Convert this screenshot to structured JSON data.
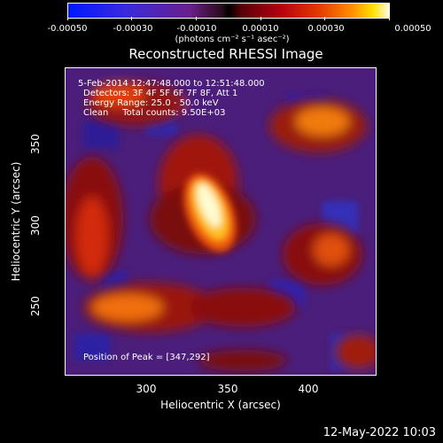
{
  "colorbar": {
    "ticks": [
      "-0.00050",
      "-0.00030",
      "-0.00010",
      "0.00010",
      "0.00030",
      "0.00050"
    ],
    "unit": "(photons cm⁻² s⁻¹ asec⁻²)"
  },
  "title": "Reconstructed RHESSI Image",
  "info": {
    "time": "5-Feb-2014 12:47:48.000 to 12:51:48.000",
    "detectors": "Detectors: 3F 4F 5F 6F 7F 8F, Att 1",
    "energy": "Energy Range: 25.0 - 50.0 keV",
    "clean": "Clean     Total counts: 9.50E+03",
    "peak": "Position of Peak = [347,292]"
  },
  "axes": {
    "xlabel": "Heliocentric X (arcsec)",
    "ylabel": "Heliocentric Y (arcsec)",
    "xticks": [
      "300",
      "350",
      "400"
    ],
    "yticks": [
      "250",
      "300",
      "350"
    ]
  },
  "timestamp": "12-May-2022 10:03",
  "colors": {
    "background": "#000000",
    "text": "#ffffff"
  }
}
